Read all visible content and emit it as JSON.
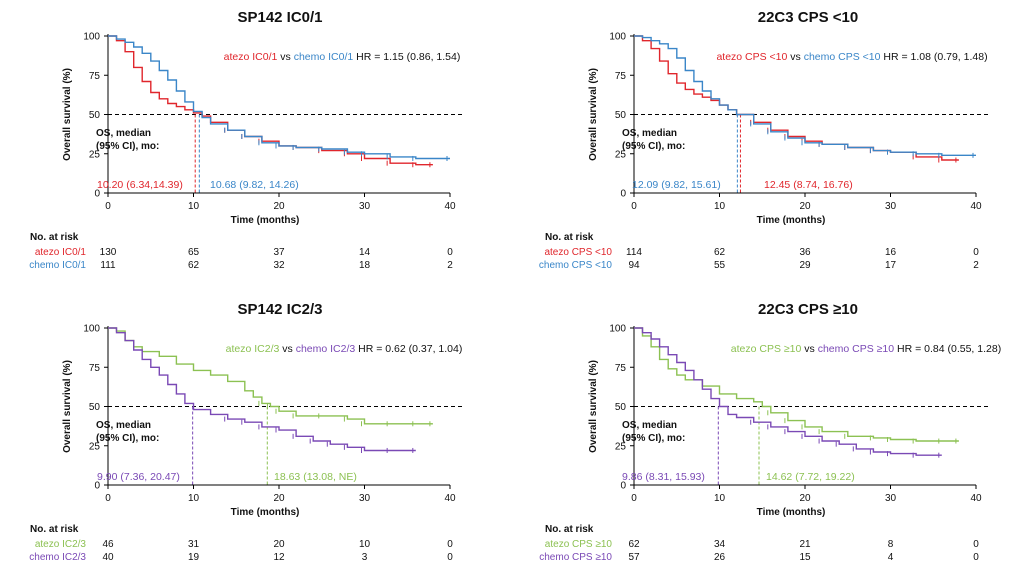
{
  "colors": {
    "red": "#e0262c",
    "blue": "#3a86c8",
    "green": "#8cc152",
    "purple": "#7a49b5",
    "black": "#111111"
  },
  "common": {
    "ylabel": "Overall survival (%)",
    "xlabel": "Time (months)",
    "risk_header": "No. at risk",
    "os_line1": "OS, median",
    "os_line2": "(95% CI), mo:",
    "vs": "vs"
  },
  "chart_data": [
    {
      "type": "line",
      "title": "SP142 IC0/1",
      "xlabel": "Time (months)",
      "ylabel": "Overall survival (%)",
      "xlim": [
        0,
        40
      ],
      "ylim": [
        0,
        100
      ],
      "x_ticks": [
        "0",
        "10",
        "20",
        "30",
        "40"
      ],
      "y_ticks": [
        "0",
        "25",
        "50",
        "75",
        "100"
      ],
      "reference_line_y": 50,
      "hr_text": "HR = 1.15 (0.86, 1.54)",
      "legend_a": "atezo IC0/1",
      "legend_b": "chemo IC0/1",
      "series": [
        {
          "name": "atezo IC0/1",
          "color": "red",
          "median": 10.2,
          "median_label": "10.20 (6.34,14.39)",
          "points": [
            [
              0,
              100
            ],
            [
              1,
              97
            ],
            [
              2,
              90
            ],
            [
              3,
              80
            ],
            [
              4,
              71
            ],
            [
              5,
              64
            ],
            [
              6,
              60
            ],
            [
              7,
              57
            ],
            [
              8,
              55
            ],
            [
              9,
              53
            ],
            [
              10,
              51
            ],
            [
              11,
              49
            ],
            [
              12,
              45
            ],
            [
              14,
              40
            ],
            [
              16,
              36
            ],
            [
              18,
              33
            ],
            [
              20,
              30
            ],
            [
              22,
              29
            ],
            [
              25,
              27
            ],
            [
              28,
              25
            ],
            [
              30,
              22
            ],
            [
              33,
              19
            ],
            [
              36,
              18
            ],
            [
              38,
              18
            ]
          ]
        },
        {
          "name": "chemo IC0/1",
          "color": "blue",
          "median": 10.68,
          "median_label": "10.68 (9.82, 14.26)",
          "points": [
            [
              0,
              100
            ],
            [
              1,
              98
            ],
            [
              2,
              96
            ],
            [
              3,
              93
            ],
            [
              4,
              89
            ],
            [
              5,
              84
            ],
            [
              6,
              78
            ],
            [
              7,
              72
            ],
            [
              8,
              65
            ],
            [
              9,
              58
            ],
            [
              10,
              52
            ],
            [
              11,
              48
            ],
            [
              12,
              44
            ],
            [
              14,
              40
            ],
            [
              16,
              36
            ],
            [
              18,
              32
            ],
            [
              20,
              30
            ],
            [
              22,
              29
            ],
            [
              25,
              28
            ],
            [
              28,
              26
            ],
            [
              30,
              25
            ],
            [
              33,
              23
            ],
            [
              36,
              22
            ],
            [
              40,
              22
            ]
          ]
        }
      ],
      "risk_table": [
        {
          "label": "atezo IC0/1",
          "color": "red",
          "values": [
            "130",
            "65",
            "37",
            "14",
            "0"
          ]
        },
        {
          "label": "chemo IC0/1",
          "color": "blue",
          "values": [
            "111",
            "62",
            "32",
            "18",
            "2"
          ]
        }
      ]
    },
    {
      "type": "line",
      "title": "22C3 CPS <10",
      "xlabel": "Time (months)",
      "ylabel": "Overall survival (%)",
      "xlim": [
        0,
        40
      ],
      "ylim": [
        0,
        100
      ],
      "x_ticks": [
        "0",
        "10",
        "20",
        "30",
        "40"
      ],
      "y_ticks": [
        "0",
        "25",
        "50",
        "75",
        "100"
      ],
      "reference_line_y": 50,
      "hr_text": "HR = 1.08 (0.79, 1.48)",
      "legend_a": "atezo CPS <10",
      "legend_b": "chemo CPS <10",
      "series": [
        {
          "name": "atezo CPS <10",
          "color": "red",
          "median": 12.45,
          "median_label": "12.45 (8.74, 16.76)",
          "points": [
            [
              0,
              100
            ],
            [
              1,
              97
            ],
            [
              2,
              92
            ],
            [
              3,
              84
            ],
            [
              4,
              76
            ],
            [
              5,
              70
            ],
            [
              6,
              66
            ],
            [
              7,
              63
            ],
            [
              8,
              61
            ],
            [
              9,
              59
            ],
            [
              10,
              56
            ],
            [
              11,
              53
            ],
            [
              12,
              50
            ],
            [
              14,
              45
            ],
            [
              16,
              40
            ],
            [
              18,
              36
            ],
            [
              20,
              33
            ],
            [
              22,
              31
            ],
            [
              25,
              29
            ],
            [
              28,
              27
            ],
            [
              30,
              26
            ],
            [
              33,
              23
            ],
            [
              36,
              21
            ],
            [
              38,
              21
            ]
          ]
        },
        {
          "name": "chemo CPS <10",
          "color": "blue",
          "median": 12.09,
          "median_label": "12.09 (9.82, 15.61)",
          "points": [
            [
              0,
              100
            ],
            [
              1,
              99
            ],
            [
              2,
              97
            ],
            [
              3,
              95
            ],
            [
              4,
              92
            ],
            [
              5,
              86
            ],
            [
              6,
              78
            ],
            [
              7,
              71
            ],
            [
              8,
              65
            ],
            [
              9,
              60
            ],
            [
              10,
              56
            ],
            [
              11,
              53
            ],
            [
              12,
              50
            ],
            [
              14,
              44
            ],
            [
              16,
              39
            ],
            [
              18,
              35
            ],
            [
              20,
              32
            ],
            [
              22,
              31
            ],
            [
              25,
              29
            ],
            [
              28,
              27
            ],
            [
              30,
              26
            ],
            [
              33,
              25
            ],
            [
              36,
              24
            ],
            [
              40,
              24
            ]
          ]
        }
      ],
      "risk_table": [
        {
          "label": "atezo CPS <10",
          "color": "red",
          "values": [
            "114",
            "62",
            "36",
            "16",
            "0"
          ]
        },
        {
          "label": "chemo CPS <10",
          "color": "blue",
          "values": [
            "94",
            "55",
            "29",
            "17",
            "2"
          ]
        }
      ]
    },
    {
      "type": "line",
      "title": "SP142 IC2/3",
      "xlabel": "Time (months)",
      "ylabel": "Overall survival (%)",
      "xlim": [
        0,
        40
      ],
      "ylim": [
        0,
        100
      ],
      "x_ticks": [
        "0",
        "10",
        "20",
        "30",
        "40"
      ],
      "y_ticks": [
        "0",
        "25",
        "50",
        "75",
        "100"
      ],
      "reference_line_y": 50,
      "hr_text": "HR = 0.62 (0.37, 1.04)",
      "legend_a": "atezo IC2/3",
      "legend_b": "chemo IC2/3",
      "series": [
        {
          "name": "atezo IC2/3",
          "color": "green",
          "median": 18.63,
          "median_label": "18.63 (13.08, NE)",
          "points": [
            [
              0,
              100
            ],
            [
              1,
              98
            ],
            [
              2,
              92
            ],
            [
              3,
              88
            ],
            [
              4,
              85
            ],
            [
              6,
              82
            ],
            [
              8,
              77
            ],
            [
              10,
              73
            ],
            [
              12,
              70
            ],
            [
              14,
              66
            ],
            [
              16,
              60
            ],
            [
              17,
              56
            ],
            [
              18,
              52
            ],
            [
              19,
              50
            ],
            [
              20,
              47
            ],
            [
              22,
              44
            ],
            [
              25,
              44
            ],
            [
              28,
              42
            ],
            [
              30,
              39
            ],
            [
              33,
              39
            ],
            [
              36,
              39
            ],
            [
              38,
              39
            ]
          ]
        },
        {
          "name": "chemo IC2/3",
          "color": "purple",
          "median": 9.9,
          "median_label": "9.90 (7.36, 20.47)",
          "points": [
            [
              0,
              100
            ],
            [
              1,
              97
            ],
            [
              2,
              92
            ],
            [
              3,
              86
            ],
            [
              4,
              80
            ],
            [
              5,
              75
            ],
            [
              6,
              70
            ],
            [
              7,
              64
            ],
            [
              8,
              58
            ],
            [
              9,
              52
            ],
            [
              10,
              48
            ],
            [
              12,
              45
            ],
            [
              14,
              42
            ],
            [
              16,
              40
            ],
            [
              18,
              37
            ],
            [
              20,
              35
            ],
            [
              22,
              31
            ],
            [
              24,
              28
            ],
            [
              26,
              26
            ],
            [
              28,
              24
            ],
            [
              30,
              22
            ],
            [
              33,
              22
            ],
            [
              36,
              22
            ]
          ]
        }
      ],
      "risk_table": [
        {
          "label": "atezo IC2/3",
          "color": "green",
          "values": [
            "46",
            "31",
            "20",
            "10",
            "0"
          ]
        },
        {
          "label": "chemo IC2/3",
          "color": "purple",
          "values": [
            "40",
            "19",
            "12",
            "3",
            "0"
          ]
        }
      ]
    },
    {
      "type": "line",
      "title": "22C3 CPS ≥10",
      "xlabel": "Time (months)",
      "ylabel": "Overall survival (%)",
      "xlim": [
        0,
        40
      ],
      "ylim": [
        0,
        100
      ],
      "x_ticks": [
        "0",
        "10",
        "20",
        "30",
        "40"
      ],
      "y_ticks": [
        "0",
        "25",
        "50",
        "75",
        "100"
      ],
      "reference_line_y": 50,
      "hr_text": "HR = 0.84 (0.55, 1.28)",
      "legend_a": "atezo CPS ≥10",
      "legend_b": "chemo CPS ≥10",
      "series": [
        {
          "name": "atezo CPS ≥10",
          "color": "green",
          "median": 14.62,
          "median_label": "14.62 (7.72, 19.22)",
          "points": [
            [
              0,
              100
            ],
            [
              1,
              95
            ],
            [
              2,
              88
            ],
            [
              3,
              80
            ],
            [
              4,
              74
            ],
            [
              5,
              70
            ],
            [
              6,
              67
            ],
            [
              8,
              63
            ],
            [
              10,
              58
            ],
            [
              12,
              55
            ],
            [
              14,
              53
            ],
            [
              15,
              50
            ],
            [
              16,
              46
            ],
            [
              18,
              41
            ],
            [
              20,
              37
            ],
            [
              22,
              34
            ],
            [
              25,
              31
            ],
            [
              28,
              30
            ],
            [
              30,
              29
            ],
            [
              33,
              28
            ],
            [
              36,
              28
            ],
            [
              38,
              28
            ]
          ]
        },
        {
          "name": "chemo CPS ≥10",
          "color": "purple",
          "median": 9.86,
          "median_label": "9.86 (8.31, 15.93)",
          "points": [
            [
              0,
              100
            ],
            [
              1,
              97
            ],
            [
              2,
              93
            ],
            [
              3,
              88
            ],
            [
              4,
              83
            ],
            [
              5,
              78
            ],
            [
              6,
              73
            ],
            [
              7,
              67
            ],
            [
              8,
              61
            ],
            [
              9,
              55
            ],
            [
              10,
              50
            ],
            [
              11,
              45
            ],
            [
              12,
              43
            ],
            [
              14,
              40
            ],
            [
              16,
              37
            ],
            [
              18,
              34
            ],
            [
              20,
              31
            ],
            [
              22,
              28
            ],
            [
              24,
              26
            ],
            [
              26,
              23
            ],
            [
              28,
              21
            ],
            [
              30,
              20
            ],
            [
              33,
              19
            ],
            [
              36,
              19
            ]
          ]
        }
      ],
      "risk_table": [
        {
          "label": "atezo CPS ≥10",
          "color": "green",
          "values": [
            "62",
            "34",
            "21",
            "8",
            "0"
          ]
        },
        {
          "label": "chemo CPS ≥10",
          "color": "purple",
          "values": [
            "57",
            "26",
            "15",
            "4",
            "0"
          ]
        }
      ]
    }
  ]
}
